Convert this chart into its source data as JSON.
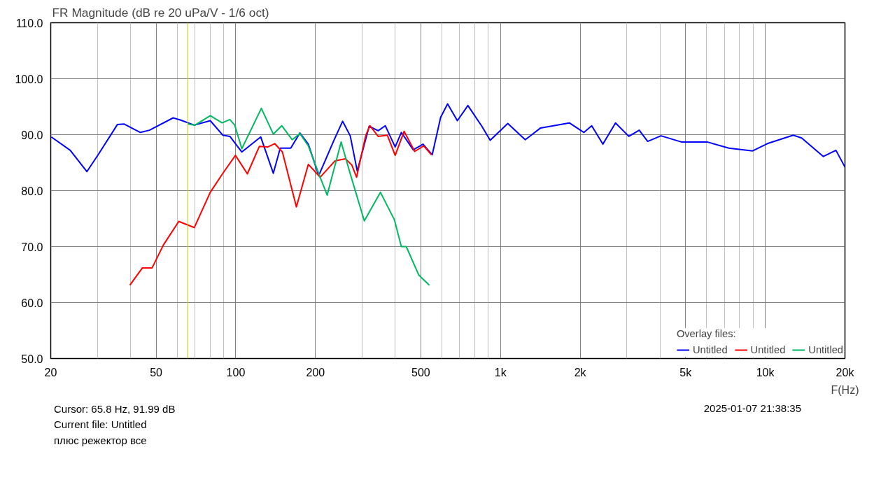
{
  "chart_data": {
    "type": "line",
    "title": "FR Magnitude (dB re 20 uPa/V - 1/6 oct)",
    "xlabel": "F(Hz)",
    "log": "x",
    "grid": true,
    "legend": "bottom right",
    "legend_title": "Overlay files:",
    "line_style": "solid",
    "marker": "none",
    "xlim": [
      20,
      20000
    ],
    "ylim": [
      50,
      110
    ],
    "xticks": [
      20,
      50,
      100,
      200,
      500,
      {
        "value": 1000,
        "label": "1k"
      },
      {
        "value": 2000,
        "label": "2k"
      },
      {
        "value": 5000,
        "label": "5k"
      },
      {
        "value": 10000,
        "label": "10k"
      },
      {
        "value": 20000,
        "label": "20k"
      }
    ],
    "yticks": [
      {
        "value": 50,
        "label": "50.0"
      },
      {
        "value": 60,
        "label": "60.0"
      },
      {
        "value": 70,
        "label": "70.0"
      },
      {
        "value": 80,
        "label": "80.0"
      },
      {
        "value": 90,
        "label": "90.0"
      },
      {
        "value": 100,
        "label": "100.0"
      },
      {
        "value": 110,
        "label": "110.0"
      }
    ],
    "ref_lines": [
      {
        "axis": "x",
        "value": 65.8,
        "label": null,
        "color": "#c8c800"
      }
    ],
    "annotations": [
      "Cursor: 65.8 Hz, 91.99 dB",
      "Current file: Untitled",
      "плюс режектор все",
      "2025-01-07  21:38:35"
    ],
    "series": [
      {
        "name": "Untitled",
        "color": "#0000ff",
        "x": [
          20.1,
          23.7,
          27.4,
          30.2,
          35.7,
          37.9,
          43.6,
          47.2,
          58.0,
          62.0,
          69.7,
          80.1,
          89.4,
          95.0,
          105.4,
          124.2,
          138.6,
          147.2,
          161.3,
          174.7,
          187.9,
          205.8,
          235.4,
          253.2,
          270.6,
          287.6,
          319,
          345,
          367,
          400,
          422,
          468,
          510,
          552,
          594,
          631,
          687,
          753,
          850,
          914,
          1065,
          1240,
          1417,
          1819,
          2066,
          2210,
          2436,
          2718,
          3052,
          3342,
          3596,
          4038,
          4816,
          6032,
          7286,
          8962,
          10184,
          12754,
          13722,
          16570,
          18490,
          20000
        ],
        "values": [
          89.6,
          87.2,
          83.4,
          86.4,
          91.8,
          91.9,
          90.4,
          90.8,
          93.0,
          92.6,
          91.7,
          92.5,
          89.9,
          89.7,
          86.9,
          89.6,
          83.1,
          87.6,
          87.6,
          90.3,
          88.3,
          82.7,
          89.1,
          92.4,
          89.8,
          83.5,
          91.5,
          90.7,
          91.6,
          87.8,
          90.4,
          87.3,
          88.3,
          86.4,
          93.1,
          95.5,
          92.5,
          95.2,
          91.5,
          89.0,
          92.0,
          89.1,
          91.2,
          92.1,
          90.4,
          91.6,
          88.3,
          92.1,
          89.7,
          90.8,
          88.8,
          89.8,
          88.7,
          88.7,
          87.6,
          87.1,
          88.4,
          89.9,
          89.4,
          86.1,
          87.2,
          84.2
        ]
      },
      {
        "name": "Untitled",
        "color": "#ff0000",
        "x": [
          39.8,
          44.4,
          48.3,
          53.3,
          60.9,
          69.7,
          80.1,
          88.8,
          99.7,
          110.6,
          122.7,
          132.0,
          140.3,
          150.0,
          169.4,
          187.9,
          208.3,
          236.8,
          259.4,
          274.1,
          286.0,
          309.4,
          321.0,
          345,
          373.8,
          400,
          432.4,
          474,
          512.8,
          548.4
        ],
        "values": [
          63.1,
          66.2,
          66.2,
          70.3,
          74.5,
          73.4,
          79.7,
          82.9,
          86.3,
          83.0,
          87.9,
          87.8,
          88.4,
          86.9,
          77.1,
          84.7,
          82.4,
          85.3,
          85.7,
          84.6,
          82.4,
          89.8,
          91.6,
          89.7,
          89.9,
          86.3,
          90.6,
          87.0,
          88.0,
          86.4
        ]
      },
      {
        "name": "Untitled",
        "color": "#00b860",
        "x": [
          65.9,
          70.1,
          80.1,
          88.8,
          95.0,
          99.1,
          105.4,
          124.9,
          138.6,
          149.1,
          163.3,
          174.7,
          187.9,
          208.3,
          221.4,
          250.0,
          270.6,
          305.8,
          351.8,
          397.3,
          422,
          440.4,
          491.5,
          538.4
        ],
        "values": [
          91.9,
          91.7,
          93.4,
          92.1,
          92.7,
          91.7,
          87.5,
          94.7,
          90.1,
          91.6,
          89.1,
          90.2,
          88.0,
          82.4,
          79.2,
          88.7,
          83.0,
          74.6,
          79.7,
          74.8,
          70.0,
          70.0,
          64.9,
          63.1
        ]
      }
    ]
  }
}
